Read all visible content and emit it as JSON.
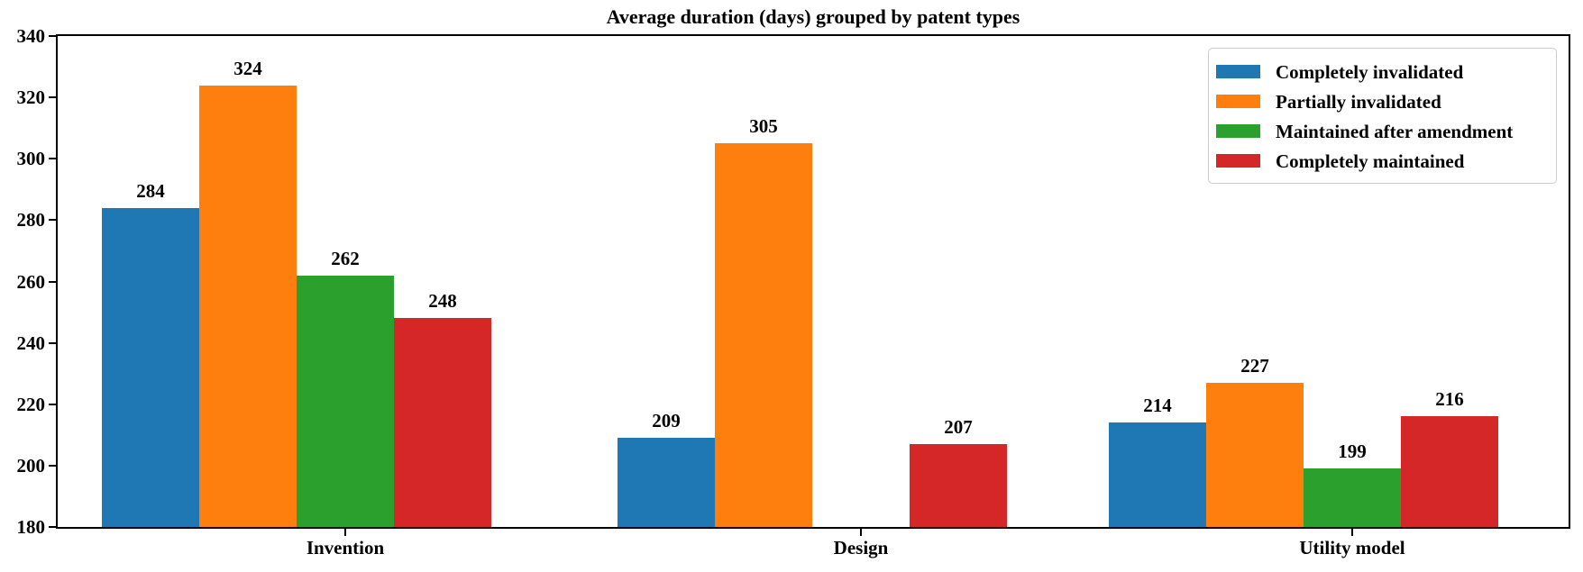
{
  "chart_data": {
    "type": "bar",
    "title": "Average duration (days) grouped by patent types",
    "xlabel": "",
    "ylabel": "",
    "categories": [
      "Invention",
      "Design",
      "Utility model"
    ],
    "series": [
      {
        "name": "Completely invalidated",
        "color": "#1f77b4",
        "values": [
          284,
          209,
          214
        ]
      },
      {
        "name": "Partially invalidated",
        "color": "#ff7f0e",
        "values": [
          324,
          305,
          227
        ]
      },
      {
        "name": "Maintained after amendment",
        "color": "#2ca02c",
        "values": [
          262,
          null,
          199
        ]
      },
      {
        "name": "Completely maintained",
        "color": "#d62728",
        "values": [
          248,
          207,
          216
        ]
      }
    ],
    "ylim": [
      180,
      340
    ],
    "yticks": [
      180,
      200,
      220,
      240,
      260,
      280,
      300,
      320,
      340
    ],
    "bar_value_labels": true,
    "grid": false,
    "legend_position": "upper right",
    "colors": {
      "text": "#000000",
      "background": "#ffffff",
      "spine": "#000000",
      "legend_border": "#cccccc"
    }
  }
}
